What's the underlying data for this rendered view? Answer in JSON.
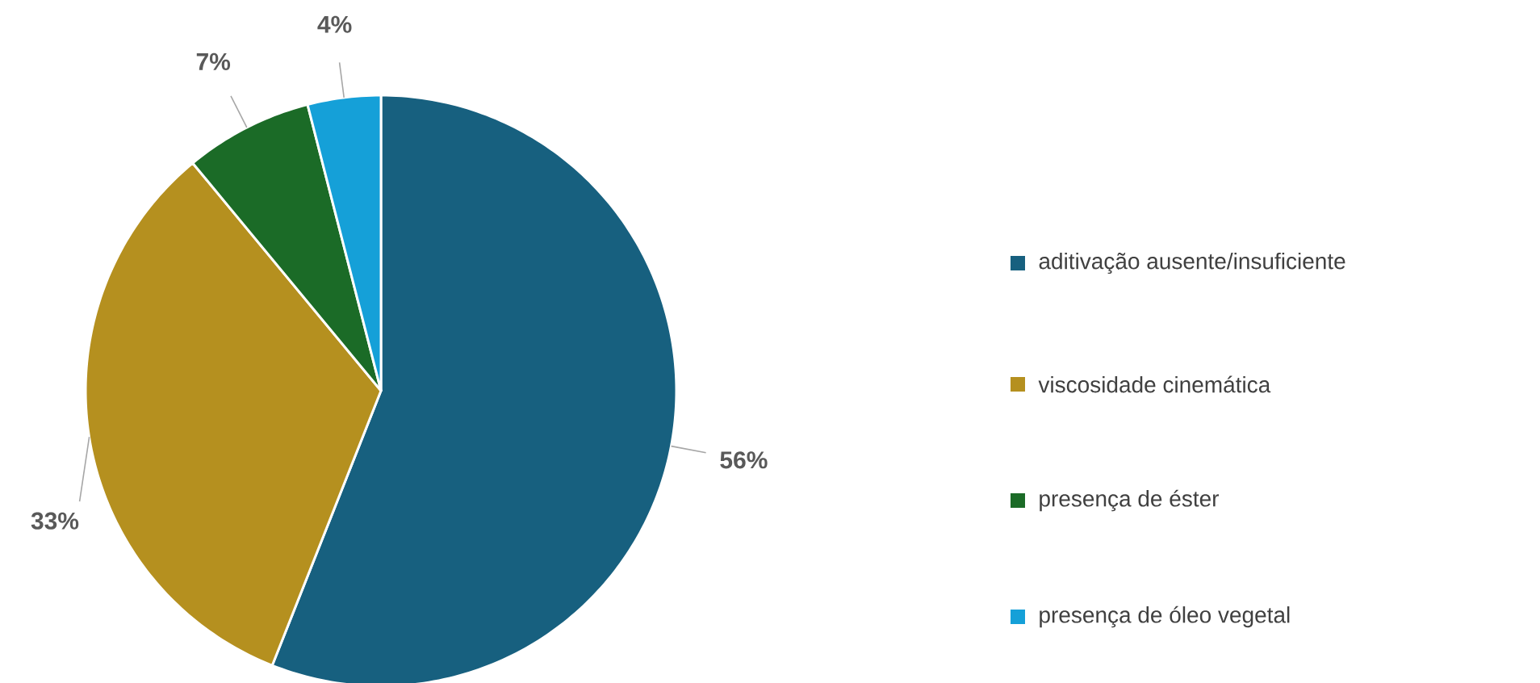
{
  "chart_data": {
    "type": "pie",
    "categories": [
      "aditivação ausente/insuficiente",
      "viscosidade cinemática",
      "presença de éster",
      "presença de óleo vegetal"
    ],
    "values": [
      56,
      33,
      7,
      4
    ],
    "value_labels": [
      "56%",
      "33%",
      "7%",
      "4%"
    ],
    "colors": [
      "#17607f",
      "#b5901f",
      "#1b6b27",
      "#15a0d8"
    ],
    "legend": "right"
  }
}
